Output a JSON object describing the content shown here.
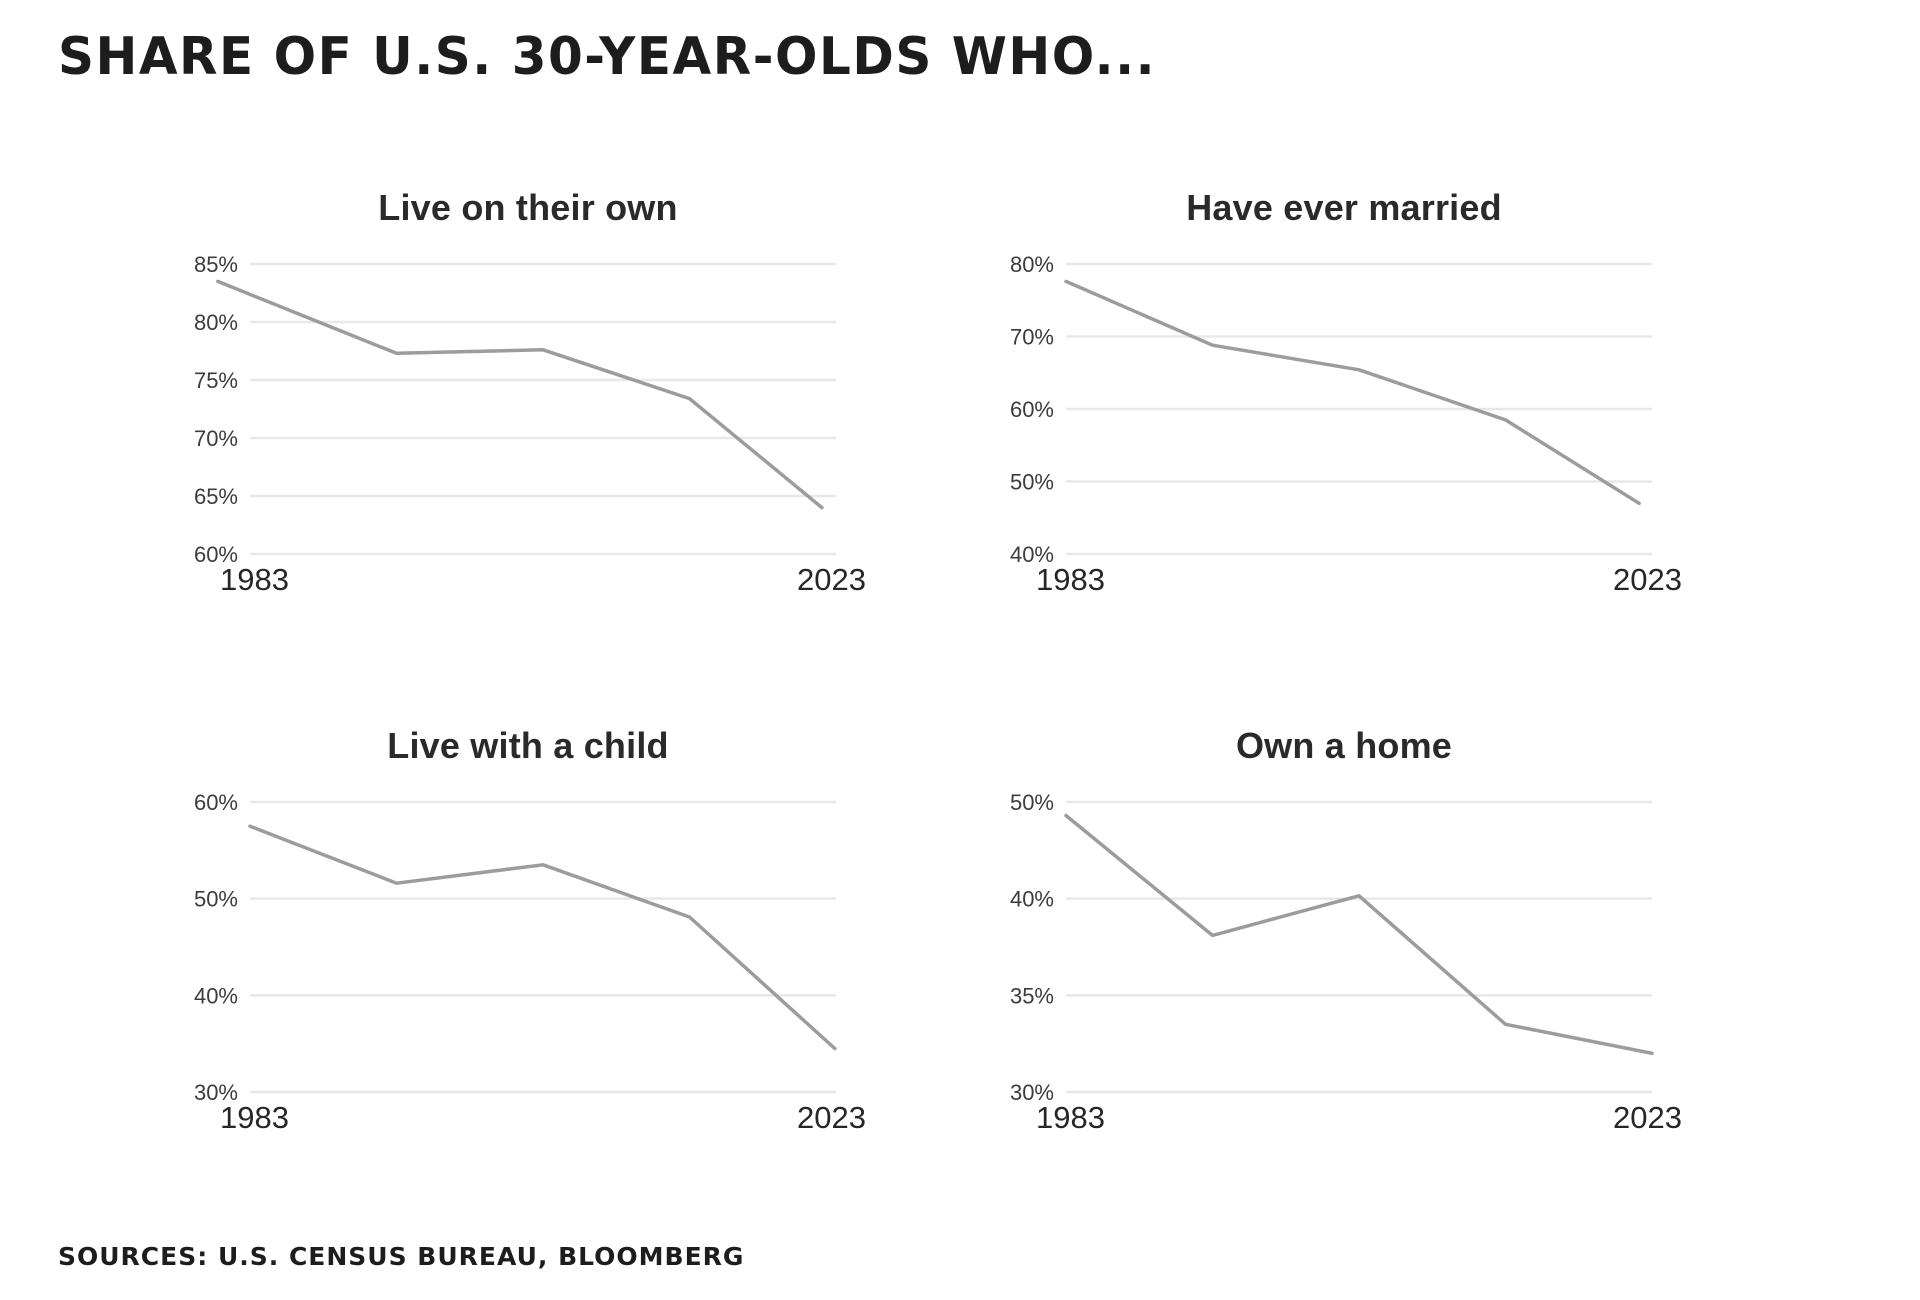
{
  "page": {
    "title": "SHARE OF U.S. 30-YEAR-OLDS WHO...",
    "source_note": "SOURCES: U.S. CENSUS BUREAU, BLOOMBERG"
  },
  "colors": {
    "background": "#ffffff",
    "line": "#9c9c9c",
    "gridline": "#e8e8e8",
    "y_tick_text": "#3c3c3c",
    "x_label_text": "#272727",
    "chart_title_text": "#2a2a2a",
    "headline_text": "#1d1d1d"
  },
  "chart_data": [
    {
      "id": "live-on-their-own",
      "type": "line",
      "title": "Live on their own",
      "unit": "%",
      "x": [
        1983,
        1993,
        2003,
        2013,
        2023
      ],
      "values": [
        83.5,
        77.3,
        77.6,
        73.4,
        64
      ],
      "y_ticks": [
        85,
        80,
        75,
        70,
        65,
        60
      ],
      "y_tick_labels": [
        "85%",
        "80%",
        "75%",
        "70%",
        "65%",
        "60%"
      ],
      "x_axis_labels": [
        "1983",
        "2023"
      ],
      "ylim": [
        60,
        85
      ],
      "grid": "horizontal-only",
      "legend": "none"
    },
    {
      "id": "have-ever-married",
      "type": "line",
      "title": "Have ever married",
      "unit": "%",
      "x": [
        1983,
        1993,
        2003,
        2013,
        2023
      ],
      "values": [
        77.6,
        68.8,
        65.4,
        58.5,
        47
      ],
      "y_ticks": [
        80,
        70,
        60,
        50,
        40
      ],
      "y_tick_labels": [
        "80%",
        "70%",
        "60%",
        "50%",
        "40%"
      ],
      "x_axis_labels": [
        "1983",
        "2023"
      ],
      "ylim": [
        40,
        80
      ],
      "grid": "horizontal-only",
      "legend": "none"
    },
    {
      "id": "live-with-a-child",
      "type": "line",
      "title": "Live with a child",
      "unit": "%",
      "x": [
        1983,
        1993,
        2003,
        2013,
        2023
      ],
      "values": [
        57.5,
        51.6,
        53.5,
        48.1,
        34.5
      ],
      "y_ticks": [
        60,
        50,
        40,
        30
      ],
      "y_tick_labels": [
        "60%",
        "50%",
        "40%",
        "30%"
      ],
      "x_axis_labels": [
        "1983",
        "2023"
      ],
      "ylim": [
        30,
        60
      ],
      "grid": "horizontal-only",
      "legend": "none"
    },
    {
      "id": "own-a-home",
      "type": "line",
      "title": "Own a home",
      "unit": "%",
      "x": [
        1983,
        1993,
        2003,
        2013,
        2023
      ],
      "values": [
        48.6,
        38.1,
        40.3,
        33.5,
        32
      ],
      "y_ticks": [
        50,
        40,
        35,
        30
      ],
      "y_tick_labels": [
        "50%",
        "40%",
        "35%",
        "30%"
      ],
      "x_axis_labels": [
        "1983",
        "2023"
      ],
      "ylim": [
        30,
        50
      ],
      "grid": "horizontal-only",
      "legend": "none",
      "axis_note": "gridlines evenly spaced despite uneven tick values"
    }
  ]
}
